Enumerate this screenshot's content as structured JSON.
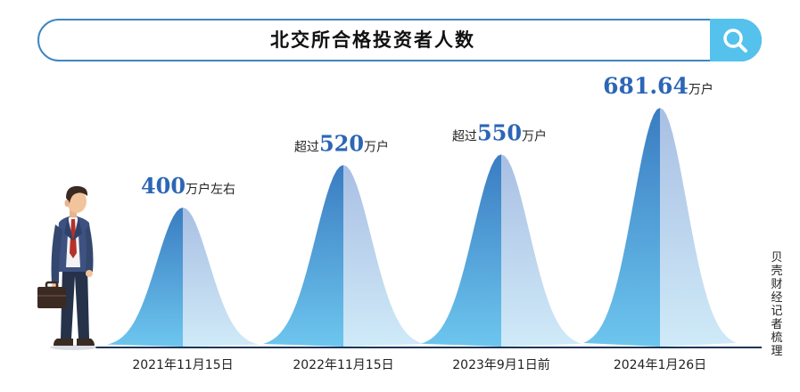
{
  "title": "北交所合格投资者人数",
  "source": "贝壳财经记者梳理",
  "colors": {
    "accent": "#3f86c4",
    "search_button": "#54c2ec",
    "value_text": "#2c66b6",
    "peak_dark": "#3a7fc4",
    "peak_light": "#b6cbe8"
  },
  "chart_data": {
    "type": "area",
    "title": "北交所合格投资者人数",
    "unit": "万户",
    "categories": [
      "2021年11月15日",
      "2022年11月15日",
      "2023年9月1日前",
      "2024年1月26日"
    ],
    "values": [
      400,
      520,
      550,
      681.64
    ],
    "value_labels": [
      {
        "prefix": "",
        "number": "400",
        "suffix": "万户左右"
      },
      {
        "prefix": "超过",
        "number": "520",
        "suffix": "万户"
      },
      {
        "prefix": "超过",
        "number": "550",
        "suffix": "万户"
      },
      {
        "prefix": "",
        "number": "681.64",
        "suffix": "万户"
      }
    ],
    "grid": false,
    "legend": "none"
  }
}
